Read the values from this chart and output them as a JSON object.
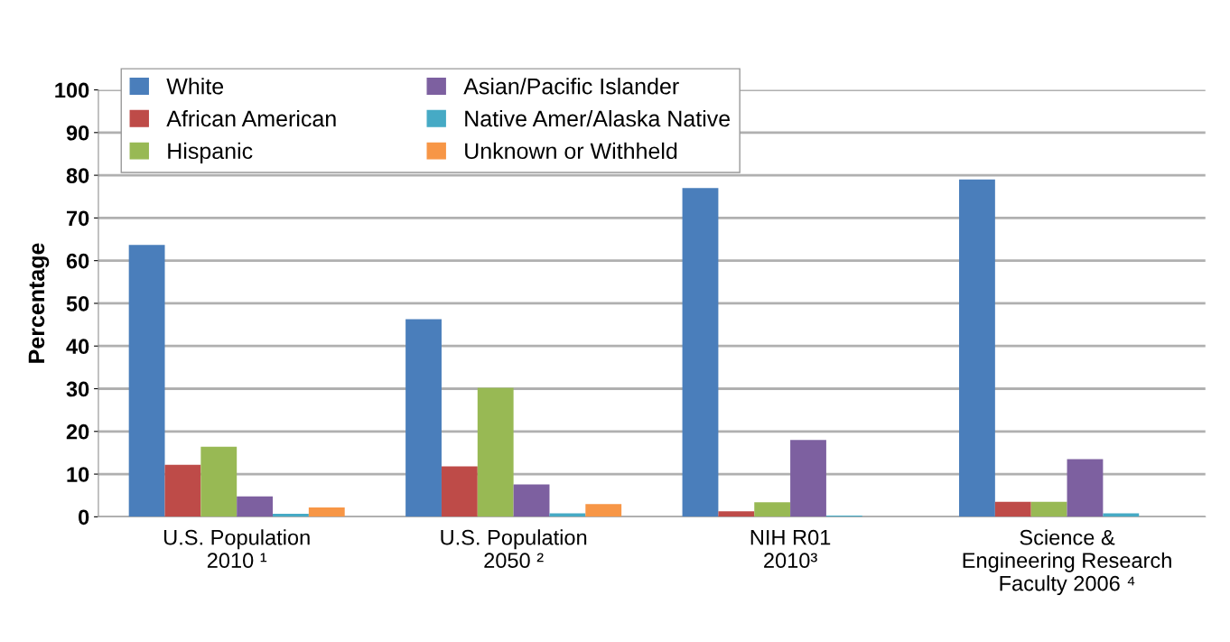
{
  "chart_data": {
    "type": "bar",
    "ylabel": "Percentage",
    "categories": [
      "U.S. Population\n2010 ¹",
      "U.S. Population\n2050 ²",
      "NIH R01\n2010³",
      "Science &\nEngineering Research\nFaculty 2006 ⁴"
    ],
    "series": [
      {
        "name": "White",
        "color": "#4a7ebb",
        "values": [
          63.7,
          46.3,
          77,
          79
        ]
      },
      {
        "name": "African American",
        "color": "#be4b48",
        "values": [
          12.2,
          11.8,
          1.3,
          3.5
        ]
      },
      {
        "name": "Hispanic",
        "color": "#98b954",
        "values": [
          16.4,
          30.2,
          3.4,
          3.5
        ]
      },
      {
        "name": "Asian/Pacific Islander",
        "color": "#7d60a0",
        "values": [
          4.8,
          7.6,
          18,
          13.5
        ]
      },
      {
        "name": "Native Amer/Alaska Native",
        "color": "#46aac5",
        "values": [
          0.7,
          0.8,
          0.3,
          0.8
        ]
      },
      {
        "name": "Unknown or Withheld",
        "color": "#f79646",
        "values": [
          2.2,
          3.0,
          0,
          0
        ]
      }
    ],
    "ylim": [
      0,
      100
    ],
    "yticks": [
      0,
      10,
      20,
      30,
      40,
      50,
      60,
      70,
      80,
      90,
      100
    ],
    "grid": "y",
    "legend": "top"
  }
}
